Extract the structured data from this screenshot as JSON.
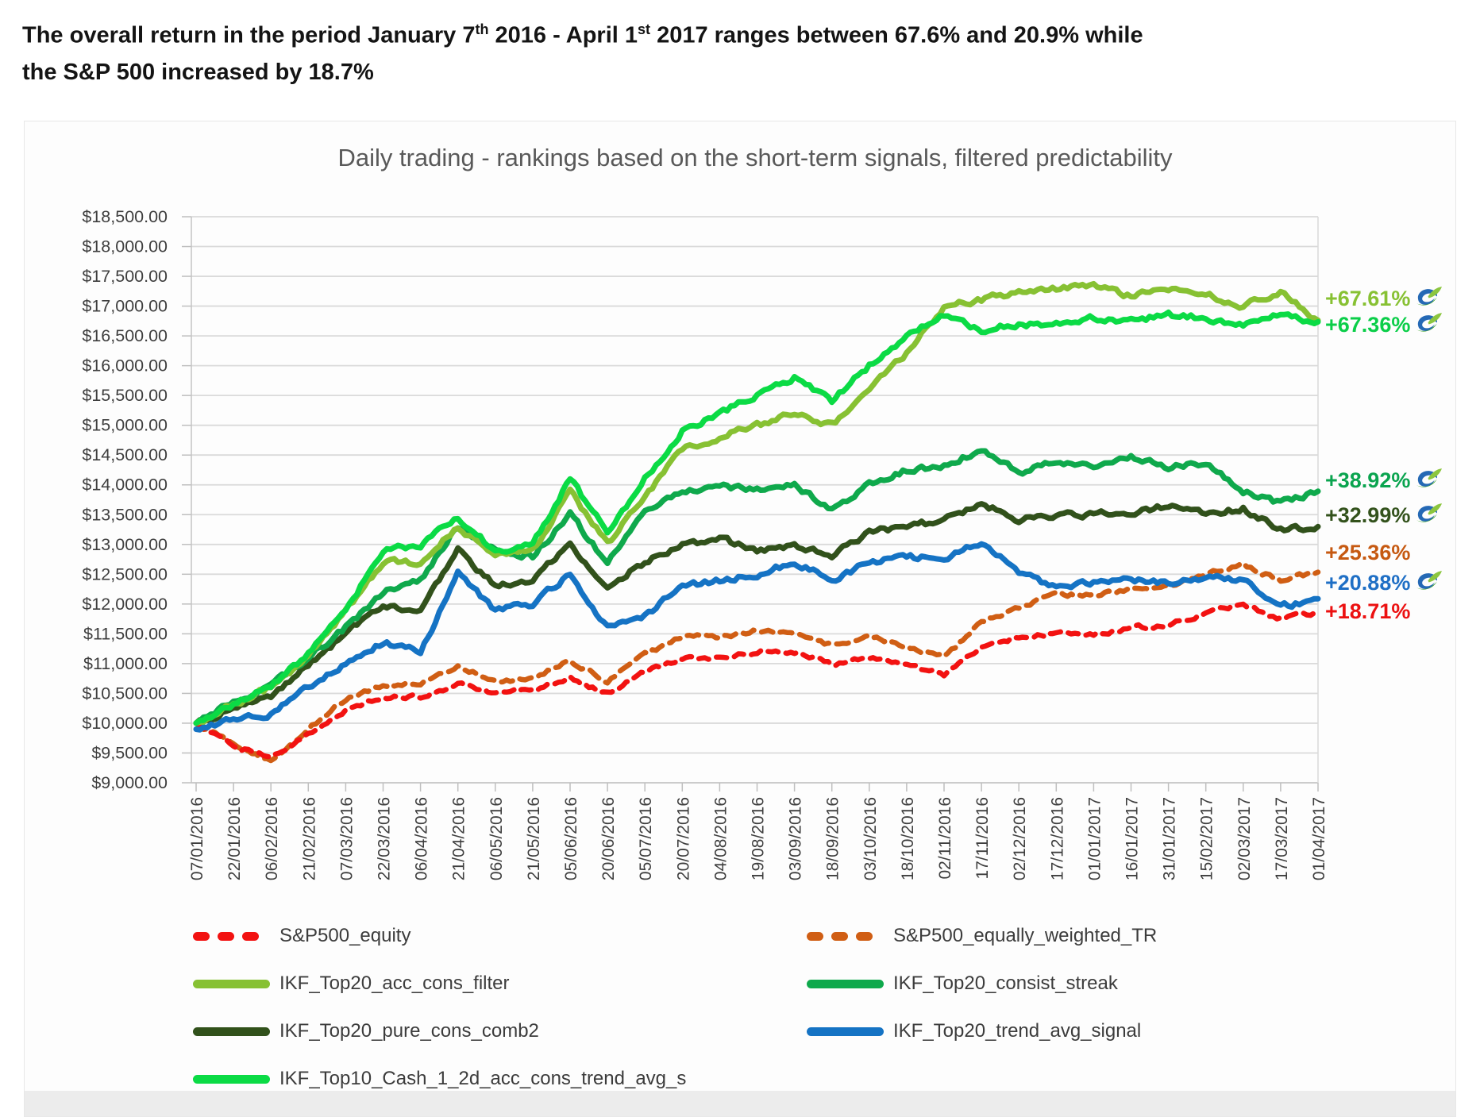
{
  "header": {
    "line1_part1": "The overall return in the period January 7",
    "line1_sup1": "th",
    "line1_part2": " 2016 - April 1",
    "line1_sup2": "st",
    "line1_part3": " 2017 ranges between 67.6% and 20.9% while",
    "line2": "the S&P 500 increased by 18.7%"
  },
  "chart": {
    "title": "Daily trading - rankings based on the short-term signals, filtered predictability"
  },
  "chart_data": {
    "type": "line",
    "title": "Daily trading - rankings based on the short-term signals, filtered predictability",
    "xlabel": "",
    "ylabel": "",
    "y_axis": {
      "min": 9000,
      "max": 18500,
      "step": 500,
      "format": "$#,##0.00",
      "grid": true
    },
    "legend_position": "bottom",
    "x": [
      "07/01/2016",
      "22/01/2016",
      "06/02/2016",
      "21/02/2016",
      "07/03/2016",
      "22/03/2016",
      "06/04/2016",
      "21/04/2016",
      "06/05/2016",
      "21/05/2016",
      "05/06/2016",
      "20/06/2016",
      "05/07/2016",
      "20/07/2016",
      "04/08/2016",
      "19/08/2016",
      "03/09/2016",
      "18/09/2016",
      "03/10/2016",
      "18/10/2016",
      "02/11/2016",
      "17/11/2016",
      "02/12/2016",
      "17/12/2016",
      "01/01/2017",
      "16/01/2017",
      "31/01/2017",
      "15/02/2017",
      "02/03/2017",
      "17/03/2017",
      "01/04/2017"
    ],
    "series": [
      {
        "name": "S&P500_equally_weighted_TR",
        "color": "#D05E14",
        "dash": true,
        "final_return": "+25.36%",
        "values": [
          10000,
          9650,
          9350,
          9900,
          10400,
          10650,
          10650,
          10950,
          10700,
          10750,
          11050,
          10700,
          11150,
          11450,
          11450,
          11550,
          11500,
          11300,
          11450,
          11300,
          11100,
          11700,
          11950,
          12150,
          12150,
          12250,
          12300,
          12500,
          12650,
          12400,
          12536
        ]
      },
      {
        "name": "S&P500_equity",
        "color": "#F21211",
        "dash": true,
        "final_return": "+18.71%",
        "values": [
          10000,
          9600,
          9450,
          9800,
          10200,
          10450,
          10450,
          10650,
          10500,
          10550,
          10750,
          10500,
          10850,
          11100,
          11100,
          11200,
          11200,
          11000,
          11100,
          11000,
          10800,
          11300,
          11450,
          11500,
          11500,
          11600,
          11650,
          11850,
          12000,
          11750,
          11871
        ]
      },
      {
        "name": "IKF_Top20_pure_cons_comb2",
        "color": "#31511B",
        "dash": false,
        "final_return": "+32.99%",
        "values": [
          10000,
          10250,
          10450,
          11000,
          11500,
          12000,
          11900,
          12900,
          12300,
          12400,
          13000,
          12300,
          12700,
          13000,
          13100,
          12900,
          13000,
          12800,
          13200,
          13300,
          13400,
          13700,
          13400,
          13500,
          13500,
          13550,
          13650,
          13500,
          13600,
          13250,
          13299
        ]
      },
      {
        "name": "IKF_Top20_trend_avg_signal",
        "color": "#1573C4",
        "dash": false,
        "final_return": "+20.88%",
        "values": [
          9900,
          10050,
          10150,
          10600,
          11000,
          11350,
          11200,
          12500,
          11900,
          12000,
          12500,
          11600,
          11800,
          12300,
          12400,
          12500,
          12700,
          12400,
          12700,
          12800,
          12750,
          13050,
          12500,
          12300,
          12350,
          12400,
          12350,
          12450,
          12400,
          11950,
          12088
        ]
      },
      {
        "name": "IKF_Top20_consist_streak",
        "color": "#0FA94C",
        "dash": false,
        "final_return": "+38.92%",
        "values": [
          10000,
          10350,
          10650,
          11100,
          11600,
          12200,
          12400,
          13300,
          12900,
          12800,
          13500,
          12700,
          13600,
          13900,
          14000,
          13900,
          14000,
          13600,
          14000,
          14250,
          14300,
          14600,
          14200,
          14400,
          14300,
          14450,
          14300,
          14350,
          13900,
          13700,
          13892
        ]
      },
      {
        "name": "IKF_Top20_acc_cons_filter",
        "color": "#87C133",
        "dash": false,
        "final_return": "+67.61%",
        "values": [
          10000,
          10300,
          10600,
          11100,
          11900,
          12700,
          12700,
          13300,
          12800,
          12900,
          13900,
          13000,
          13800,
          14600,
          14800,
          15000,
          15200,
          15000,
          15600,
          16200,
          17000,
          17100,
          17250,
          17300,
          17350,
          17150,
          17300,
          17200,
          17000,
          17250,
          16761
        ]
      },
      {
        "name": "IKF_Top10_Cash_1_2d_acc_cons_trend_avg_s",
        "color": "#0BDB45",
        "dash": false,
        "final_return": "+67.36%",
        "values": [
          10000,
          10300,
          10650,
          11150,
          11900,
          12900,
          13000,
          13450,
          12900,
          13000,
          14100,
          13200,
          14100,
          14900,
          15200,
          15500,
          15800,
          15400,
          16000,
          16500,
          16850,
          16600,
          16700,
          16700,
          16800,
          16750,
          16850,
          16800,
          16700,
          16850,
          16736
        ]
      }
    ],
    "annotations": [
      {
        "text": "+67.61%",
        "color": "#87C133",
        "icon": true
      },
      {
        "text": "+67.36%",
        "color": "#0BCE49",
        "icon": true
      },
      {
        "text": "+38.92%",
        "color": "#0AA44F",
        "icon": true
      },
      {
        "text": "+32.99%",
        "color": "#33521C",
        "icon": true
      },
      {
        "text": "+25.36%",
        "color": "#C65911",
        "icon": false
      },
      {
        "text": "+20.88%",
        "color": "#1F6FC5",
        "icon": true
      },
      {
        "text": "+18.71%",
        "color": "#EC1111",
        "icon": false
      }
    ],
    "legend_rows": [
      [
        "S&P500_equity",
        "S&P500_equally_weighted_TR"
      ],
      [
        "IKF_Top20_acc_cons_filter",
        "IKF_Top20_consist_streak"
      ],
      [
        "IKF_Top20_pure_cons_comb2",
        "IKF_Top20_trend_avg_signal"
      ],
      [
        "IKF_Top10_Cash_1_2d_acc_cons_trend_avg_s"
      ]
    ]
  }
}
